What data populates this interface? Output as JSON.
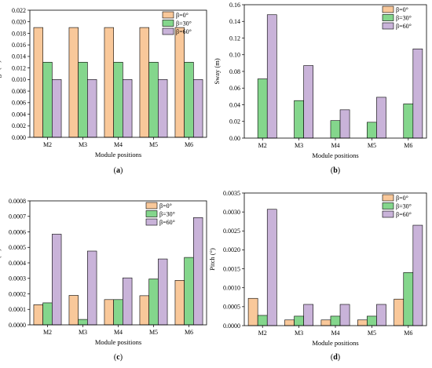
{
  "figure": {
    "panel_labels": [
      "a",
      "b",
      "c",
      "d"
    ]
  },
  "style": {
    "colors": {
      "β=0°": "#f9c89a",
      "β=30°": "#84d68c",
      "β=60°": "#c9b3d9"
    },
    "bar_stroke": "#000000",
    "frame_stroke": "#000000"
  },
  "chart_data": [
    {
      "panel": "a",
      "type": "bar",
      "categories": [
        "M2",
        "M3",
        "M4",
        "M5",
        "M6"
      ],
      "series": [
        {
          "name": "β=0°",
          "values": [
            0.019,
            0.019,
            0.019,
            0.019,
            0.019
          ]
        },
        {
          "name": "β=30°",
          "values": [
            0.013,
            0.013,
            0.013,
            0.013,
            0.013
          ]
        },
        {
          "name": "β=60°",
          "values": [
            0.01,
            0.01,
            0.01,
            0.01,
            0.01
          ]
        }
      ],
      "xlabel": "Module positions",
      "ylabel": "Surge (m)",
      "ylim": [
        0,
        0.022
      ],
      "yticks": [
        "0.000",
        "0.002",
        "0.004",
        "0.006",
        "0.008",
        "0.010",
        "0.012",
        "0.014",
        "0.016",
        "0.018",
        "0.020",
        "0.022"
      ],
      "legend": [
        "β=0°",
        "β=30°",
        "β=60°"
      ],
      "legend_position": "top-right",
      "grid": false
    },
    {
      "panel": "b",
      "type": "bar",
      "categories": [
        "M2",
        "M3",
        "M4",
        "M5",
        "M6"
      ],
      "series": [
        {
          "name": "β=0°",
          "values": [
            0,
            0,
            0,
            0,
            0
          ]
        },
        {
          "name": "β=30°",
          "values": [
            0.071,
            0.045,
            0.021,
            0.019,
            0.041
          ]
        },
        {
          "name": "β=60°",
          "values": [
            0.148,
            0.087,
            0.034,
            0.049,
            0.107
          ]
        }
      ],
      "xlabel": "Module positions",
      "ylabel": "Sway (m)",
      "ylim": [
        0,
        0.16
      ],
      "yticks": [
        "0.00",
        "0.02",
        "0.04",
        "0.06",
        "0.08",
        "0.10",
        "0.12",
        "0.14",
        "0.16"
      ],
      "legend": [
        "β=0°",
        "β=30°",
        "β=60°"
      ],
      "legend_position": "top-right",
      "grid": false
    },
    {
      "panel": "c",
      "type": "bar",
      "categories": [
        "M2",
        "M3",
        "M4",
        "M5",
        "M6"
      ],
      "series": [
        {
          "name": "β=0°",
          "values": [
            0.00013,
            0.00019,
            0.000163,
            0.000188,
            0.000287
          ]
        },
        {
          "name": "β=30°",
          "values": [
            0.000142,
            3.5e-05,
            0.000163,
            0.000296,
            0.000435
          ]
        },
        {
          "name": "β=60°",
          "values": [
            0.000585,
            0.000476,
            0.000303,
            0.000425,
            0.000692
          ]
        }
      ],
      "xlabel": "Module positions",
      "ylabel": "Heave (m)",
      "ylim": [
        0,
        0.0008
      ],
      "yticks": [
        "0.0000",
        "0.0001",
        "0.0002",
        "0.0003",
        "0.0004",
        "0.0005",
        "0.0006",
        "0.0007",
        "0.0008"
      ],
      "legend": [
        "β=0°",
        "β=30°",
        "β=60°"
      ],
      "legend_position": "top-left",
      "grid": false
    },
    {
      "panel": "d",
      "type": "bar",
      "categories": [
        "M2",
        "M3",
        "M4",
        "M5",
        "M6"
      ],
      "series": [
        {
          "name": "β=0°",
          "values": [
            0.00072,
            0.00015,
            0.00015,
            0.00015,
            0.0007
          ]
        },
        {
          "name": "β=30°",
          "values": [
            0.00027,
            0.00025,
            0.00025,
            0.00025,
            0.0014
          ]
        },
        {
          "name": "β=60°",
          "values": [
            0.00307,
            0.00056,
            0.00056,
            0.00056,
            0.00265
          ]
        }
      ],
      "xlabel": "Module positions",
      "ylabel": "Pitch (°)",
      "ylim": [
        0,
        0.0035
      ],
      "yticks": [
        "0.0000",
        "0.0005",
        "0.0010",
        "0.0015",
        "0.0020",
        "0.0025",
        "0.0030",
        "0.0035"
      ],
      "legend": [
        "β=0°",
        "β=30°",
        "β=60°"
      ],
      "legend_position": "top-right",
      "grid": false
    }
  ]
}
